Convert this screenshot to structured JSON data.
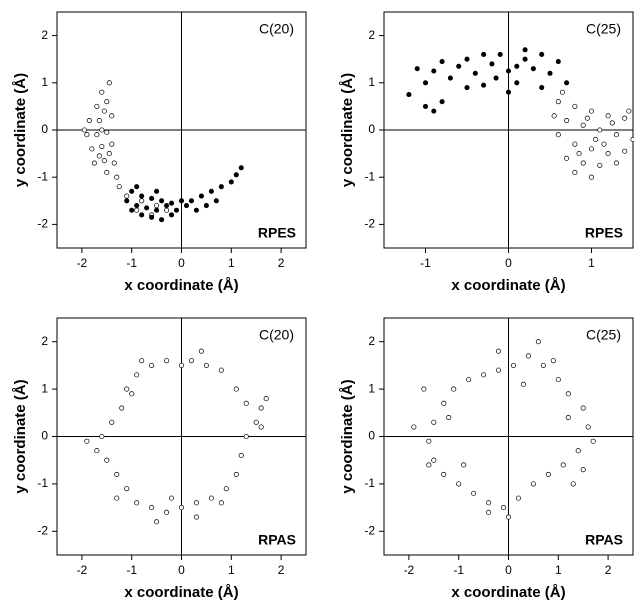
{
  "chart_data": [
    {
      "type": "scatter",
      "annotations": [
        "C(20)",
        "RPES"
      ],
      "xlabel": "x coordinate (Å)",
      "ylabel": "y coordinate (Å)",
      "xlim": [
        -2.5,
        2.5
      ],
      "ylim": [
        -2.5,
        2.5
      ],
      "xticks": [
        -2,
        -1,
        0,
        1,
        2
      ],
      "yticks": [
        -2,
        -1,
        0,
        1,
        2
      ],
      "series": [
        {
          "color": "#000000",
          "fill": "#ffffff",
          "x": [
            -1.6,
            -1.45,
            -1.7,
            -1.5,
            -1.85,
            -1.65,
            -1.4,
            -1.9,
            -1.7,
            -1.5,
            -1.8,
            -1.6,
            -1.4,
            -1.75,
            -1.55,
            -1.35,
            -1.5,
            -1.3,
            -1.6,
            -1.55,
            -1.95,
            -1.45,
            -1.65,
            -1.25,
            -1.1,
            -0.8,
            -0.5,
            -0.3,
            -0.9,
            -0.6
          ],
          "y": [
            0.8,
            1.0,
            0.5,
            0.6,
            0.2,
            0.2,
            0.3,
            -0.1,
            -0.1,
            -0.05,
            -0.4,
            -0.35,
            -0.3,
            -0.7,
            -0.65,
            -0.7,
            -0.9,
            -1.0,
            0.0,
            0.4,
            0.0,
            -0.5,
            -0.55,
            -1.2,
            -1.4,
            -1.5,
            -1.6,
            -1.7,
            -1.7,
            -1.8
          ]
        },
        {
          "color": "#000000",
          "fill": "#000000",
          "x": [
            -1.0,
            -0.8,
            -0.6,
            -0.4,
            -0.2,
            0,
            -1.1,
            -0.9,
            -0.7,
            -0.5,
            -0.3,
            -0.1,
            0.1,
            -1.0,
            -0.8,
            -0.6,
            -0.4,
            -0.2,
            0.2,
            0.4,
            0.6,
            0.8,
            1.0,
            1.2,
            0.5,
            -0.9,
            -0.5,
            0.3,
            0.7,
            1.1
          ],
          "y": [
            -1.3,
            -1.4,
            -1.45,
            -1.5,
            -1.55,
            -1.5,
            -1.5,
            -1.6,
            -1.65,
            -1.7,
            -1.6,
            -1.7,
            -1.6,
            -1.7,
            -1.8,
            -1.85,
            -1.9,
            -1.8,
            -1.5,
            -1.4,
            -1.3,
            -1.2,
            -1.1,
            -0.8,
            -1.6,
            -1.2,
            -1.3,
            -1.7,
            -1.5,
            -0.95
          ]
        }
      ]
    },
    {
      "type": "scatter",
      "annotations": [
        "C(25)",
        "RPES"
      ],
      "xlabel": "x coordinate (Å)",
      "ylabel": "y coordinate (Å)",
      "xlim": [
        -1.5,
        1.5
      ],
      "ylim": [
        -2.5,
        2.5
      ],
      "xticks": [
        -1,
        0,
        1
      ],
      "yticks": [
        -2,
        -1,
        0,
        1,
        2
      ],
      "series": [
        {
          "color": "#000000",
          "fill": "#000000",
          "x": [
            -1.2,
            -1.0,
            -1.1,
            -0.9,
            -0.8,
            -0.7,
            -0.6,
            -0.5,
            -0.4,
            -0.3,
            -0.2,
            -0.1,
            0,
            0.1,
            0.2,
            0.3,
            0.4,
            0.5,
            0.6,
            0.7,
            -0.5,
            -0.3,
            0,
            0.2,
            -0.8,
            -1.0,
            -0.9,
            0.4,
            -0.15,
            0.1
          ],
          "y": [
            0.75,
            1.0,
            1.3,
            1.25,
            1.45,
            1.1,
            1.35,
            1.5,
            1.2,
            0.95,
            1.4,
            1.6,
            1.25,
            1.0,
            1.5,
            1.3,
            0.9,
            1.2,
            1.45,
            1.0,
            0.9,
            1.6,
            0.8,
            1.7,
            0.6,
            0.5,
            0.4,
            1.6,
            1.1,
            1.35
          ]
        },
        {
          "color": "#000000",
          "fill": "#ffffff",
          "x": [
            0.6,
            0.8,
            1.0,
            1.2,
            1.4,
            1.55,
            0.7,
            0.9,
            1.1,
            1.3,
            1.5,
            0.6,
            0.8,
            1.0,
            1.2,
            1.4,
            0.7,
            0.9,
            1.1,
            1.3,
            0.8,
            1.0,
            0.65,
            0.55,
            1.45,
            1.15,
            0.95,
            1.25,
            0.85,
            1.05
          ],
          "y": [
            0.6,
            0.5,
            0.4,
            0.3,
            0.25,
            0.1,
            0.2,
            0.1,
            0.0,
            -0.1,
            -0.2,
            -0.1,
            -0.3,
            -0.4,
            -0.5,
            -0.45,
            -0.6,
            -0.7,
            -0.75,
            -0.7,
            -0.9,
            -1.0,
            0.8,
            0.3,
            0.4,
            -0.3,
            0.25,
            0.15,
            -0.5,
            -0.2
          ]
        }
      ]
    },
    {
      "type": "scatter",
      "annotations": [
        "C(20)",
        "RPAS"
      ],
      "xlabel": "x coordinate (Å)",
      "ylabel": "y coordinate (Å)",
      "xlim": [
        -2.5,
        2.5
      ],
      "ylim": [
        -2.5,
        2.5
      ],
      "xticks": [
        -2,
        -1,
        0,
        1,
        2
      ],
      "yticks": [
        -2,
        -1,
        0,
        1,
        2
      ],
      "series": [
        {
          "color": "#000000",
          "fill": "#ffffff",
          "x": [
            1.5,
            1.6,
            1.3,
            1.1,
            0.8,
            0.5,
            0.2,
            0,
            -0.3,
            -0.6,
            -0.9,
            -1.1,
            -1.2,
            -1.4,
            -1.6,
            -1.7,
            -1.5,
            -1.3,
            -1.1,
            -0.9,
            -0.6,
            -0.3,
            0,
            0.3,
            0.6,
            0.9,
            1.1,
            1.2,
            1.3,
            1.6,
            -0.5,
            -0.2,
            0.4,
            -0.8,
            -1.9,
            1.7,
            0.3,
            -1.3,
            0.8,
            -1.0
          ],
          "y": [
            0.3,
            0.6,
            0.7,
            1.0,
            1.4,
            1.5,
            1.6,
            1.5,
            1.6,
            1.5,
            1.3,
            1.0,
            0.6,
            0.3,
            0,
            -0.3,
            -0.5,
            -0.8,
            -1.1,
            -1.4,
            -1.5,
            -1.6,
            -1.5,
            -1.4,
            -1.3,
            -1.1,
            -0.8,
            -0.4,
            0,
            0.2,
            -1.8,
            -1.3,
            1.8,
            1.6,
            -0.1,
            0.8,
            -1.7,
            -1.3,
            -1.4,
            0.9
          ]
        }
      ]
    },
    {
      "type": "scatter",
      "annotations": [
        "C(25)",
        "RPAS"
      ],
      "xlabel": "x coordinate (Å)",
      "ylabel": "y coordinate (Å)",
      "xlim": [
        -2.5,
        2.5
      ],
      "ylim": [
        -2.5,
        2.5
      ],
      "xticks": [
        -2,
        -1,
        0,
        1,
        2
      ],
      "yticks": [
        -2,
        -1,
        0,
        1,
        2
      ],
      "series": [
        {
          "color": "#000000",
          "fill": "#ffffff",
          "x": [
            1.6,
            1.5,
            1.2,
            1.0,
            0.7,
            0.4,
            0.1,
            -0.2,
            -0.5,
            -0.8,
            -1.1,
            -1.3,
            -1.5,
            -1.6,
            -1.5,
            -1.3,
            -1.0,
            -0.7,
            -0.4,
            -0.1,
            0.2,
            0.5,
            0.8,
            1.1,
            1.4,
            1.5,
            -1.9,
            -1.7,
            0.6,
            0.9,
            -0.4,
            1.2,
            -1.2,
            0.3,
            -0.9,
            1.7,
            -0.2,
            1.3,
            -1.6,
            0.0
          ],
          "y": [
            0.2,
            0.6,
            0.9,
            1.2,
            1.5,
            1.7,
            1.5,
            1.4,
            1.3,
            1.2,
            1.0,
            0.7,
            0.3,
            -0.1,
            -0.5,
            -0.8,
            -1.0,
            -1.2,
            -1.4,
            -1.5,
            -1.3,
            -1.0,
            -0.8,
            -0.6,
            -0.3,
            -0.7,
            0.2,
            1.0,
            2.0,
            1.6,
            -1.6,
            0.4,
            0.4,
            1.1,
            -0.6,
            -0.1,
            1.8,
            -1.0,
            -0.6,
            -1.7
          ]
        }
      ]
    }
  ]
}
